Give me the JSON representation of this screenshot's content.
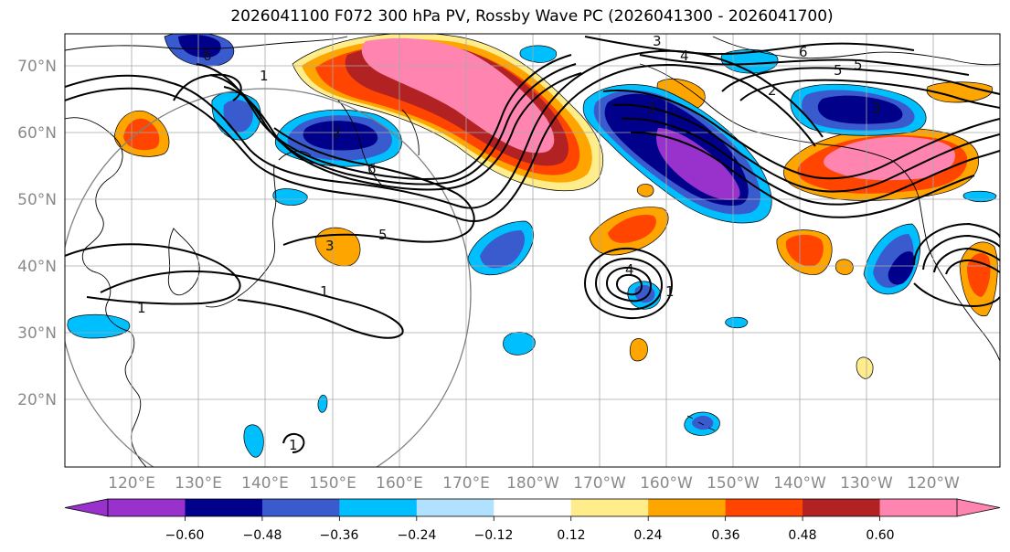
{
  "title": "2026041100 F072 300 hPa PV, Rossby Wave PC (2026041300 - 2026041700)",
  "lat_labels": [
    "70°N",
    "60°N",
    "50°N",
    "40°N",
    "30°N",
    "20°N"
  ],
  "lon_labels": [
    "120°E",
    "130°E",
    "140°E",
    "150°E",
    "160°E",
    "170°E",
    "180°W",
    "170°W",
    "160°W",
    "150°W",
    "140°W",
    "130°W",
    "120°W"
  ],
  "colorbar": {
    "colors": [
      "#9932cc",
      "#00008b",
      "#3a5bcd",
      "#00bfff",
      "#b0e2ff",
      "#ffffff",
      "#ffec8b",
      "#ffa500",
      "#ff4500",
      "#b22222",
      "#ff85b0"
    ],
    "under_color": "#9932cc",
    "over_color": "#ff85b0",
    "tick_labels": [
      "−0.60",
      "−0.48",
      "−0.36",
      "−0.24",
      "−0.12",
      "0.12",
      "0.24",
      "0.36",
      "0.48",
      "0.60"
    ]
  },
  "contour_labels": [
    "6",
    "1",
    "2",
    "6",
    "5",
    "3",
    "1",
    "3",
    "4",
    "5",
    "3",
    "6",
    "5",
    "2",
    "3",
    "1",
    "4",
    "1",
    "1"
  ]
}
